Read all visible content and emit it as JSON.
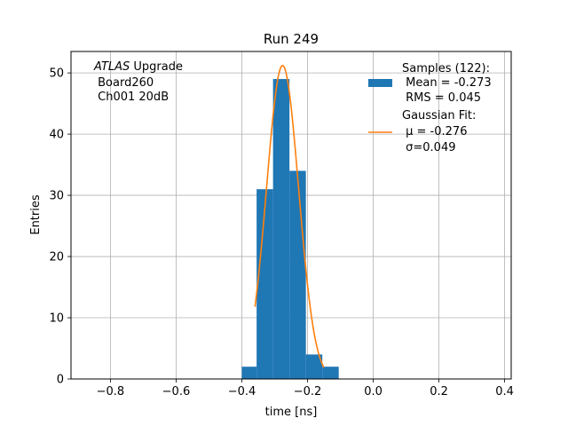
{
  "chart_data": {
    "type": "bar",
    "title": "Run 249",
    "xlabel": "time [ns]",
    "ylabel": "Entries",
    "xlim": [
      -0.92,
      0.42
    ],
    "ylim": [
      0,
      53.5
    ],
    "xticks": [
      -0.8,
      -0.6,
      -0.4,
      -0.2,
      0.0,
      0.2,
      0.4
    ],
    "xtick_labels": [
      "−0.8",
      "−0.6",
      "−0.4",
      "−0.2",
      "0.0",
      "0.2",
      "0.4"
    ],
    "yticks": [
      0,
      10,
      20,
      30,
      40,
      50
    ],
    "ytick_labels": [
      "0",
      "10",
      "20",
      "30",
      "40",
      "50"
    ],
    "grid": true,
    "histogram": {
      "name": "Samples (122):",
      "color": "#1f77b4",
      "bin_edges": [
        -0.4,
        -0.35,
        -0.3,
        -0.25,
        -0.2,
        -0.15,
        -0.1
      ],
      "bins": [
        {
          "x0": -0.4,
          "x1": -0.355,
          "value": 2
        },
        {
          "x0": -0.355,
          "x1": -0.305,
          "value": 31
        },
        {
          "x0": -0.305,
          "x1": -0.255,
          "value": 49
        },
        {
          "x0": -0.255,
          "x1": -0.205,
          "value": 34
        },
        {
          "x0": -0.205,
          "x1": -0.155,
          "value": 4
        },
        {
          "x0": -0.155,
          "x1": -0.105,
          "value": 2
        }
      ]
    },
    "fit": {
      "name": "Gaussian Fit:",
      "color": "#ff7f0e",
      "mu": -0.276,
      "sigma": 0.049,
      "amplitude": 51.2,
      "x_range": [
        -0.36,
        -0.15
      ]
    },
    "legend": {
      "placement": "top-right",
      "entries": [
        {
          "lines": [
            "Samples (122):",
            " Mean = -0.273",
            " RMS = 0.045"
          ],
          "kind": "patch",
          "color": "#1f77b4"
        },
        {
          "lines": [
            "Gaussian Fit:",
            " μ = -0.276",
            " σ=0.049"
          ],
          "kind": "line",
          "color": "#ff7f0e"
        }
      ]
    },
    "annotation": {
      "lines": [
        "ATLAS Upgrade",
        " Board260",
        " Ch001 20dB"
      ],
      "italic_word": "ATLAS",
      "placement": "top-left"
    }
  }
}
